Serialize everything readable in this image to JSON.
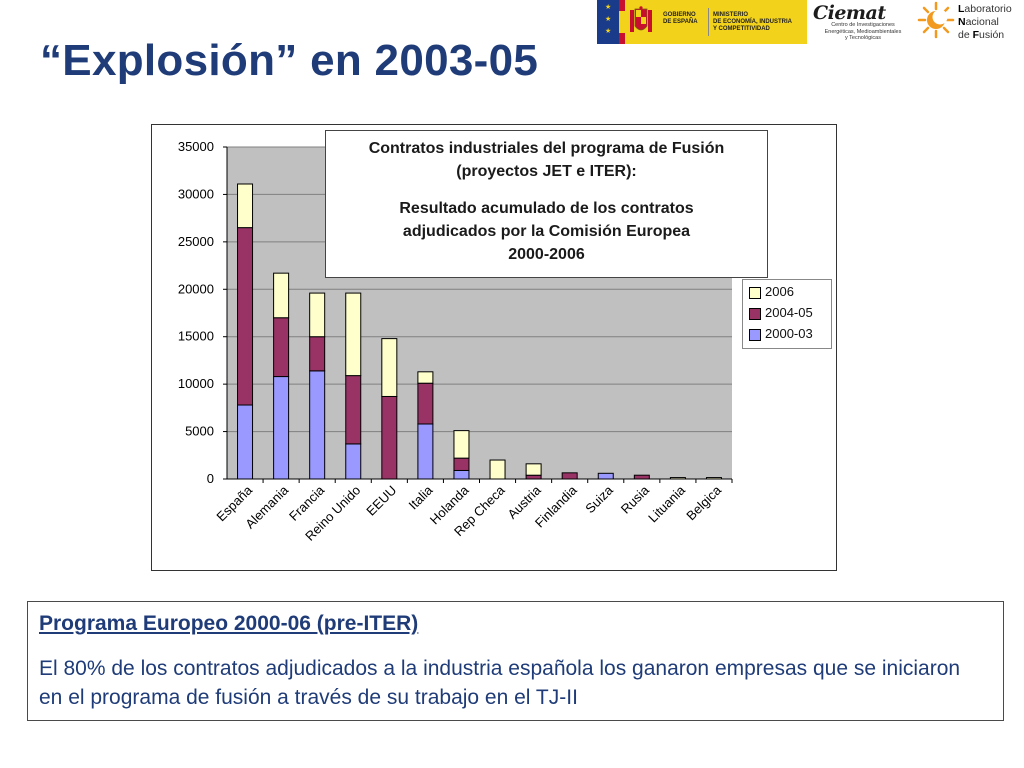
{
  "slide": {
    "title": "“Explosión” en 2003-05"
  },
  "logos": {
    "gobierno": {
      "line1": "GOBIERNO",
      "line2": "DE ESPAÑA"
    },
    "ministerio": {
      "line1": "MINISTERIO",
      "line2": "DE ECONOMÍA, INDUSTRIA",
      "line3": "Y COMPETITIVIDAD"
    },
    "ciemat": {
      "name": "Ciemat",
      "line1": "Centro de Investigaciones",
      "line2": "Energéticas, Medioambientales",
      "line3": "y Tecnológicas"
    },
    "lnf": {
      "first1": "L",
      "rest1": "aboratorio",
      "first2": "N",
      "rest2": "acional",
      "pre3": "de ",
      "first3": "F",
      "rest3": "usión"
    }
  },
  "chart_title": {
    "line1": "Contratos industriales del programa de Fusión",
    "line2": "(proyectos JET e ITER):",
    "line3": "Resultado acumulado de los contratos",
    "line4": "adjudicados por la Comisión Europea",
    "line5": "2000-2006"
  },
  "colors": {
    "s2000": "#9999ff",
    "s2004": "#993366",
    "s2006": "#ffffcc",
    "plot_bg": "#c0c0c0",
    "gridline": "#808080"
  },
  "chart_data": {
    "type": "bar",
    "stacked": true,
    "categories": [
      "España",
      "Alemania",
      "Francia",
      "Reino Unido",
      "EEUU",
      "Italia",
      "Holanda",
      "Rep Checa",
      "Austria",
      "Finlandia",
      "Suiza",
      "Rusia",
      "Lituania",
      "Belgica"
    ],
    "series": [
      {
        "name": "2000-03",
        "values": [
          7800,
          10800,
          11400,
          3700,
          0,
          5800,
          900,
          0,
          0,
          0,
          600,
          0,
          0,
          0
        ]
      },
      {
        "name": "2004-05",
        "values": [
          18700,
          6200,
          3600,
          7200,
          8700,
          4300,
          1300,
          0,
          400,
          650,
          0,
          400,
          0,
          0
        ]
      },
      {
        "name": "2006",
        "values": [
          4600,
          4700,
          4600,
          8700,
          6100,
          1200,
          2900,
          2000,
          1200,
          0,
          0,
          0,
          150,
          150
        ]
      }
    ],
    "legend": [
      "2006",
      "2004-05",
      "2000-03"
    ],
    "legend_position": "right",
    "yticks": [
      "35000",
      "30000",
      "25000",
      "20000",
      "15000",
      "10000",
      "5000",
      "0"
    ],
    "ylim": [
      0,
      35000
    ],
    "grid": true
  },
  "textbox": {
    "heading": "Programa Europeo 2000-06 (pre-ITER)",
    "body": "El 80% de los contratos adjudicados a la industria española los ganaron empresas que se iniciaron en el programa de fusión a través de su trabajo en el TJ-II"
  }
}
